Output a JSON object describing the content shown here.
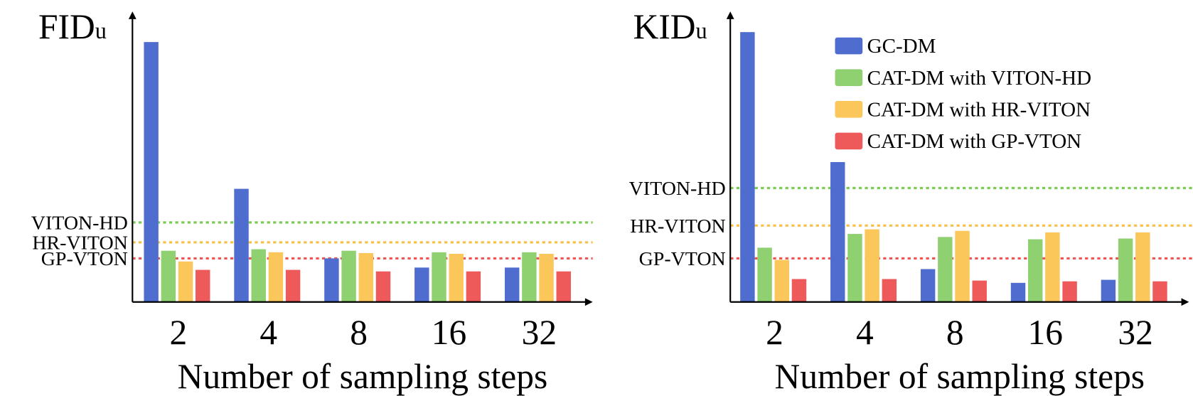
{
  "chart_data": [
    {
      "type": "bar",
      "title": "FID",
      "title_sub": "u",
      "categories": [
        "2",
        "4",
        "8",
        "16",
        "32"
      ],
      "xlabel": "Number of sampling steps",
      "series": [
        {
          "color": "#4f6ccf",
          "values": [
            340,
            148,
            57,
            45,
            45
          ]
        },
        {
          "color": "#8fd070",
          "values": [
            67,
            69,
            67,
            65,
            65
          ]
        },
        {
          "color": "#fbc65a",
          "values": [
            53,
            65,
            64,
            63,
            63
          ]
        },
        {
          "color": "#ee5a5a",
          "values": [
            42,
            42,
            40,
            40,
            40
          ]
        }
      ],
      "ref_lines": [
        {
          "label": "VITON-HD",
          "value": 104,
          "color": "#7ccb52"
        },
        {
          "label": "HR-VITON",
          "value": 78,
          "color": "#f8c14a"
        },
        {
          "label": "GP-VTON",
          "value": 57,
          "color": "#ee5555"
        }
      ],
      "ylim": [
        0,
        380
      ]
    },
    {
      "type": "bar",
      "title": "KID",
      "title_sub": "u",
      "categories": [
        "2",
        "4",
        "8",
        "16",
        "32"
      ],
      "xlabel": "Number of sampling steps",
      "series": [
        {
          "name": "GC-DM",
          "color": "#4f6ccf",
          "values": [
            353,
            183,
            43,
            25,
            29
          ]
        },
        {
          "name": "CAT-DM with VITON-HD",
          "color": "#8fd070",
          "values": [
            71,
            89,
            85,
            82,
            83
          ]
        },
        {
          "name": "CAT-DM with HR-VITON",
          "color": "#fbc65a",
          "values": [
            55,
            95,
            93,
            91,
            91
          ]
        },
        {
          "name": "CAT-DM with GP-VTON",
          "color": "#ee5a5a",
          "values": [
            30,
            30,
            28,
            27,
            27
          ]
        }
      ],
      "ref_lines": [
        {
          "label": "VITON-HD",
          "value": 149,
          "color": "#7ccb52"
        },
        {
          "label": "HR-VITON",
          "value": 100,
          "color": "#f8c14a"
        },
        {
          "label": "GP-VTON",
          "value": 57,
          "color": "#ee5555"
        }
      ],
      "ylim": [
        0,
        380
      ],
      "legend": "upper right"
    }
  ]
}
